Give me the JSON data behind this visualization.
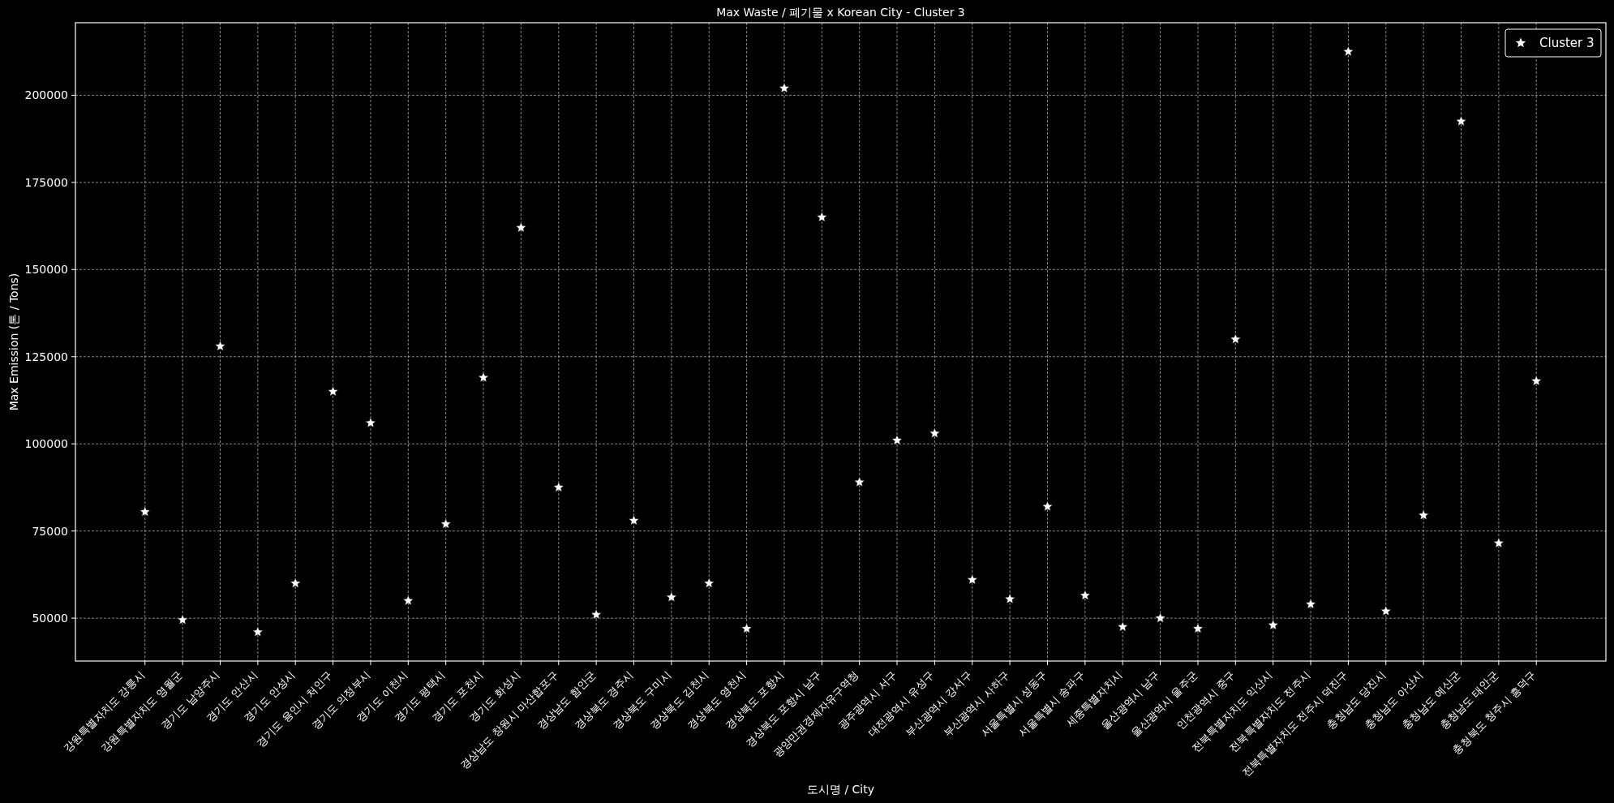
{
  "chart_data": {
    "type": "scatter",
    "title": "Max Waste / 폐기물 x Korean City - Cluster 3",
    "xlabel": "도시명 / City",
    "ylabel": "Max Emission (톤 / Tons)",
    "categories": [
      "강원특별자치도 강릉시",
      "강원특별자치도 영월군",
      "경기도 남양주시",
      "경기도 안산시",
      "경기도 안성시",
      "경기도 용인시 처인구",
      "경기도 의정부시",
      "경기도 이천시",
      "경기도 평택시",
      "경기도 포천시",
      "경기도 화성시",
      "경상남도 창원시 마산합포구",
      "경상남도 함안군",
      "경상북도 경주시",
      "경상북도 구미시",
      "경상북도 김천시",
      "경상북도 영천시",
      "경상북도 포항시",
      "경상북도 포항시 남구",
      "광양만권경제자유구역청",
      "광주광역시 서구",
      "대전광역시 유성구",
      "부산광역시 강서구",
      "부산광역시 사하구",
      "서울특별시 성동구",
      "서울특별시 송파구",
      "세종특별자치시",
      "울산광역시 남구",
      "울산광역시 울주군",
      "인천광역시 중구",
      "전북특별자치도 익산시",
      "전북특별자치도 전주시",
      "전북특별자치도 전주시 덕진구",
      "충청남도 당진시",
      "충청남도 아산시",
      "충청남도 예산군",
      "충청남도 태안군",
      "충청북도 청주시 흥덕구"
    ],
    "series": [
      {
        "name": "Cluster 3",
        "color": "#ffffff",
        "values": [
          80500,
          49500,
          128000,
          46000,
          60000,
          115000,
          106000,
          55000,
          77000,
          119000,
          162000,
          87500,
          51000,
          78000,
          56000,
          60000,
          47000,
          202000,
          165000,
          89000,
          101000,
          103000,
          61000,
          55500,
          82000,
          56500,
          47500,
          50000,
          47000,
          130000,
          48000,
          54000,
          212500,
          52000,
          79500,
          192500,
          71500,
          118000
        ]
      }
    ],
    "ylim": [
      37700,
      220800
    ],
    "yticks": [
      50000,
      75000,
      100000,
      125000,
      150000,
      175000,
      200000
    ],
    "grid": true,
    "legend": "top right",
    "marker": "star"
  }
}
